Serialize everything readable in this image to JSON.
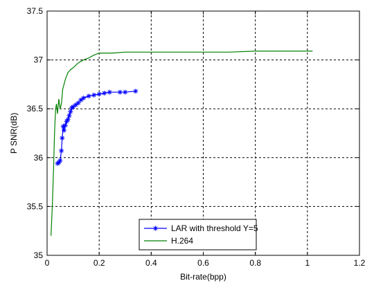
{
  "chart_data": {
    "type": "line",
    "xlabel": "Bit-rate(bpp)",
    "ylabel": "P SNR(dB)",
    "xlim": [
      0,
      1.2
    ],
    "ylim": [
      35,
      37.5
    ],
    "x_ticks": [
      "0",
      "0.2",
      "0.4",
      "0.6",
      "0.8",
      "1",
      "1.2"
    ],
    "y_ticks": [
      "35",
      "35.5",
      "36",
      "36.5",
      "37",
      "37.5"
    ],
    "grid": true,
    "legend_position": "bottom-center",
    "series": [
      {
        "name": "LAR with threshold Y=5",
        "color": "#0000ff",
        "marker": "asterisk",
        "x": [
          0.04,
          0.045,
          0.05,
          0.055,
          0.058,
          0.062,
          0.065,
          0.07,
          0.075,
          0.08,
          0.085,
          0.09,
          0.095,
          0.1,
          0.11,
          0.12,
          0.13,
          0.14,
          0.16,
          0.18,
          0.2,
          0.22,
          0.24,
          0.28,
          0.3,
          0.34
        ],
        "y": [
          35.94,
          35.95,
          35.97,
          36.07,
          36.2,
          36.32,
          36.28,
          36.33,
          36.37,
          36.39,
          36.43,
          36.47,
          36.51,
          36.52,
          36.54,
          36.56,
          36.59,
          36.61,
          36.63,
          36.64,
          36.65,
          36.66,
          36.67,
          36.67,
          36.67,
          36.68
        ]
      },
      {
        "name": "H.264",
        "color": "#008000",
        "marker": "none",
        "x": [
          0.015,
          0.02,
          0.025,
          0.028,
          0.03,
          0.033,
          0.036,
          0.04,
          0.045,
          0.05,
          0.055,
          0.06,
          0.065,
          0.07,
          0.08,
          0.09,
          0.1,
          0.12,
          0.14,
          0.16,
          0.18,
          0.2,
          0.22,
          0.25,
          0.3,
          0.4,
          0.5,
          0.6,
          0.7,
          0.8,
          0.9,
          1.0,
          1.02
        ],
        "y": [
          35.2,
          35.5,
          35.9,
          36.2,
          36.35,
          36.5,
          36.55,
          36.45,
          36.6,
          36.5,
          36.55,
          36.7,
          36.75,
          36.8,
          36.87,
          36.9,
          36.92,
          36.97,
          37.0,
          37.02,
          37.05,
          37.07,
          37.07,
          37.07,
          37.08,
          37.08,
          37.08,
          37.08,
          37.08,
          37.09,
          37.09,
          37.09,
          37.09
        ]
      }
    ]
  }
}
